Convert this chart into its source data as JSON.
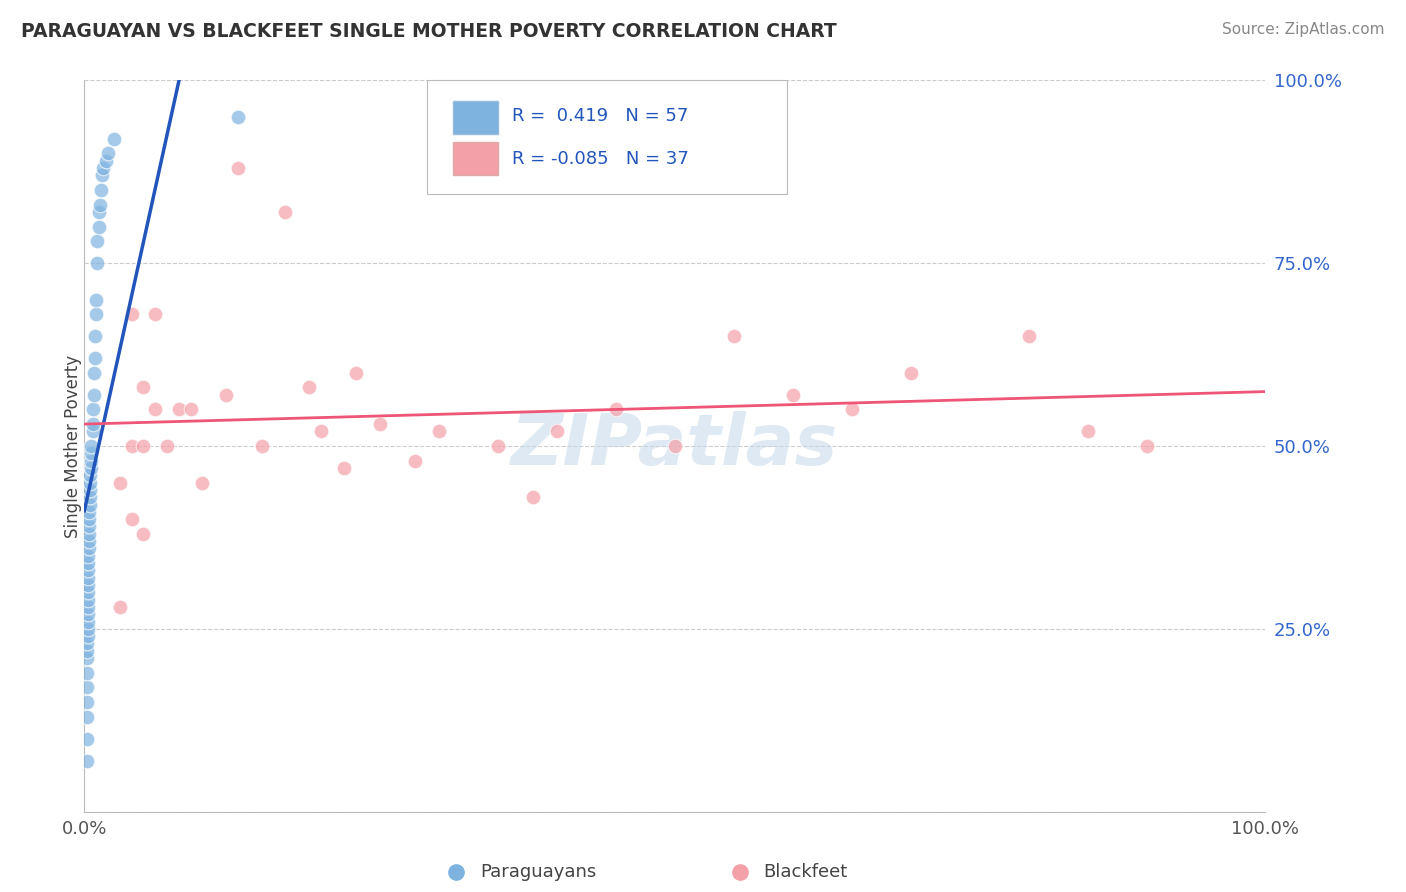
{
  "title": "PARAGUAYAN VS BLACKFEET SINGLE MOTHER POVERTY CORRELATION CHART",
  "source": "Source: ZipAtlas.com",
  "ylabel": "Single Mother Poverty",
  "legend_blue_r": " 0.419",
  "legend_blue_n": "57",
  "legend_pink_r": "-0.085",
  "legend_pink_n": "37",
  "blue_color": "#7EB3E0",
  "pink_color": "#F4A0A8",
  "blue_line_color": "#2255BB",
  "pink_line_color": "#EE5577",
  "watermark": "ZIPatlas",
  "blue_x": [
    0.002,
    0.002,
    0.002,
    0.002,
    0.002,
    0.002,
    0.002,
    0.002,
    0.002,
    0.003,
    0.003,
    0.003,
    0.003,
    0.003,
    0.003,
    0.003,
    0.003,
    0.003,
    0.003,
    0.003,
    0.003,
    0.004,
    0.004,
    0.004,
    0.004,
    0.004,
    0.004,
    0.005,
    0.005,
    0.005,
    0.005,
    0.005,
    0.006,
    0.006,
    0.006,
    0.006,
    0.007,
    0.007,
    0.007,
    0.008,
    0.008,
    0.009,
    0.009,
    0.01,
    0.01,
    0.011,
    0.011,
    0.012,
    0.012,
    0.013,
    0.014,
    0.015,
    0.016,
    0.018,
    0.02,
    0.025,
    0.13
  ],
  "blue_y": [
    0.07,
    0.1,
    0.13,
    0.15,
    0.17,
    0.19,
    0.21,
    0.22,
    0.23,
    0.24,
    0.25,
    0.26,
    0.27,
    0.28,
    0.29,
    0.3,
    0.31,
    0.32,
    0.33,
    0.34,
    0.35,
    0.36,
    0.37,
    0.38,
    0.39,
    0.4,
    0.41,
    0.42,
    0.43,
    0.44,
    0.45,
    0.46,
    0.47,
    0.48,
    0.49,
    0.5,
    0.52,
    0.53,
    0.55,
    0.57,
    0.6,
    0.62,
    0.65,
    0.68,
    0.7,
    0.75,
    0.78,
    0.8,
    0.82,
    0.83,
    0.85,
    0.87,
    0.88,
    0.89,
    0.9,
    0.92,
    0.95
  ],
  "pink_x": [
    0.03,
    0.03,
    0.04,
    0.04,
    0.04,
    0.05,
    0.05,
    0.05,
    0.06,
    0.06,
    0.07,
    0.08,
    0.09,
    0.1,
    0.12,
    0.13,
    0.15,
    0.17,
    0.19,
    0.2,
    0.22,
    0.23,
    0.25,
    0.28,
    0.3,
    0.35,
    0.38,
    0.4,
    0.45,
    0.5,
    0.55,
    0.6,
    0.65,
    0.7,
    0.8,
    0.85,
    0.9
  ],
  "pink_y": [
    0.28,
    0.45,
    0.4,
    0.5,
    0.68,
    0.38,
    0.5,
    0.58,
    0.55,
    0.68,
    0.5,
    0.55,
    0.55,
    0.45,
    0.57,
    0.88,
    0.5,
    0.82,
    0.58,
    0.52,
    0.47,
    0.6,
    0.53,
    0.48,
    0.52,
    0.5,
    0.43,
    0.52,
    0.55,
    0.5,
    0.65,
    0.57,
    0.55,
    0.6,
    0.65,
    0.52,
    0.5
  ],
  "xlim": [
    0.0,
    1.0
  ],
  "ylim": [
    0.0,
    1.0
  ],
  "yticks": [
    0.0,
    0.25,
    0.5,
    0.75,
    1.0
  ],
  "ytick_labels": [
    "",
    "25.0%",
    "50.0%",
    "75.0%",
    "100.0%"
  ],
  "xticks": [
    0.0,
    1.0
  ],
  "xtick_labels": [
    "0.0%",
    "100.0%"
  ]
}
